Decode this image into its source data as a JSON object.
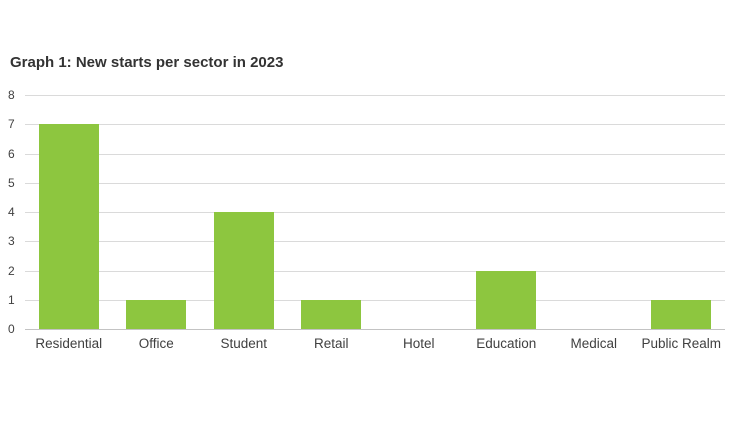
{
  "page": {
    "background_color": "#ffffff"
  },
  "chart_data": {
    "type": "bar",
    "title": "Graph 1: New starts per sector in 2023",
    "categories": [
      "Residential",
      "Office",
      "Student",
      "Retail",
      "Hotel",
      "Education",
      "Medical",
      "Public Realm"
    ],
    "values": [
      7,
      1,
      4,
      1,
      0,
      2,
      0,
      1
    ],
    "xlabel": "",
    "ylabel": "",
    "ylim": [
      0,
      8
    ],
    "ytick_step": 1,
    "ytick_labels": [
      "0",
      "1",
      "2",
      "3",
      "4",
      "5",
      "6",
      "7",
      "8"
    ],
    "grid": "horizontal",
    "legend_position": "none",
    "bar_color": "#8DC63F",
    "gridline_color": "#DADADA",
    "axis_line_color": "#C3C3C3",
    "tick_label_color": "#404040",
    "title_color": "#333333"
  }
}
